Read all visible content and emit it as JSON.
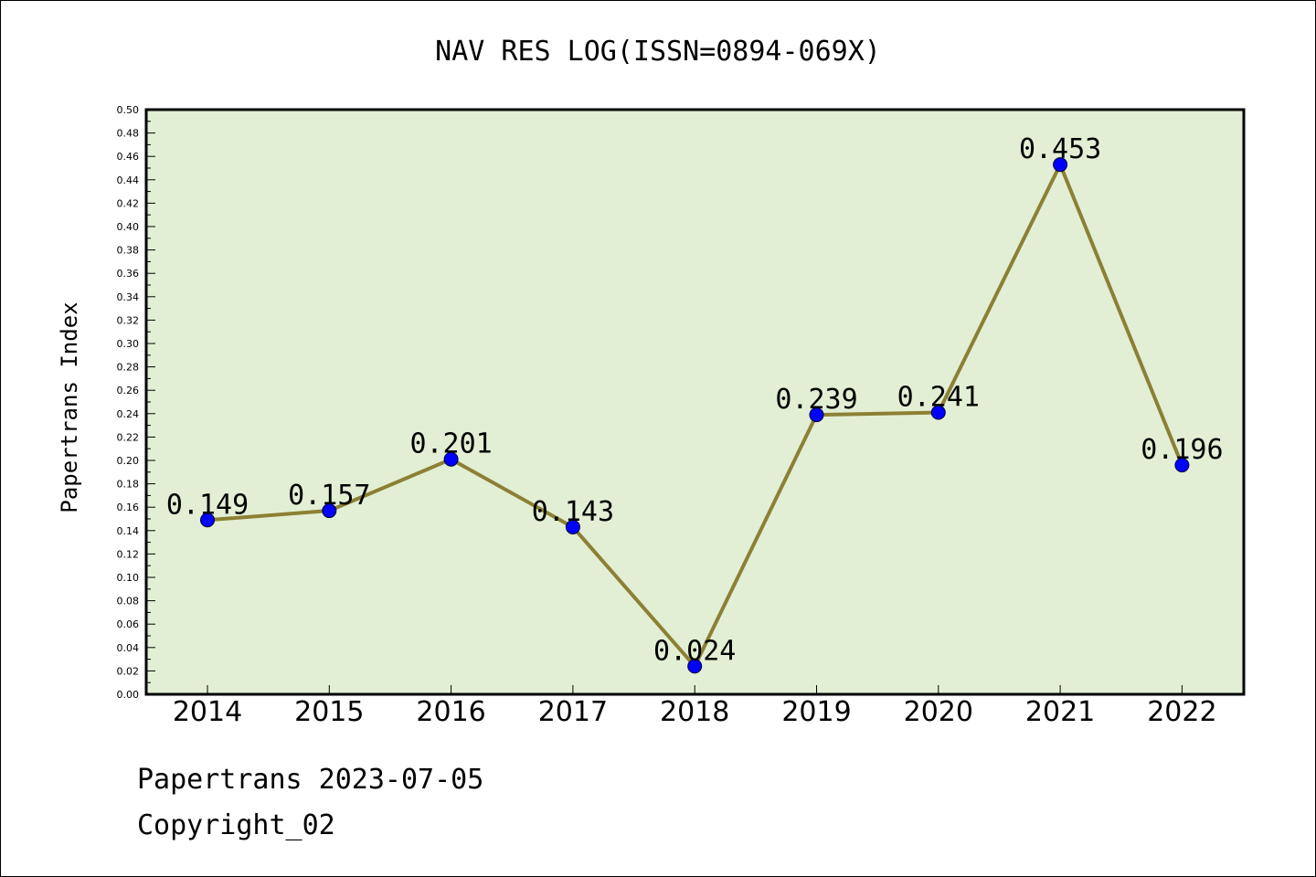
{
  "chart_data": {
    "type": "line",
    "title": "NAV RES LOG(ISSN=0894-069X)",
    "xlabel": "",
    "ylabel": "Papertrans Index",
    "categories": [
      "2014",
      "2015",
      "2016",
      "2017",
      "2018",
      "2019",
      "2020",
      "2021",
      "2022"
    ],
    "series": [
      {
        "values": [
          0.149,
          0.157,
          0.201,
          0.143,
          0.024,
          0.239,
          0.241,
          0.453,
          0.196
        ],
        "labels": [
          "0.149",
          "0.157",
          "0.201",
          "0.143",
          "0.024",
          "0.239",
          "0.241",
          "0.453",
          "0.196"
        ]
      }
    ],
    "ylim": [
      0,
      0.5
    ],
    "yticks": [
      "0.00",
      "0.02",
      "0.04",
      "0.06",
      "0.08",
      "0.10",
      "0.12",
      "0.14",
      "0.16",
      "0.18",
      "0.20",
      "0.22",
      "0.24",
      "0.26",
      "0.28",
      "0.30",
      "0.32",
      "0.34",
      "0.36",
      "0.38",
      "0.40",
      "0.42",
      "0.44",
      "0.46",
      "0.48",
      "0.50"
    ],
    "grid": false,
    "legend": "none"
  },
  "colors": {
    "plot_background": "#e2efd4",
    "line": "#8b8034",
    "marker": "#0000ff"
  },
  "footer": {
    "date_line": "Papertrans 2023-07-05",
    "copyright": "Copyright_02"
  }
}
